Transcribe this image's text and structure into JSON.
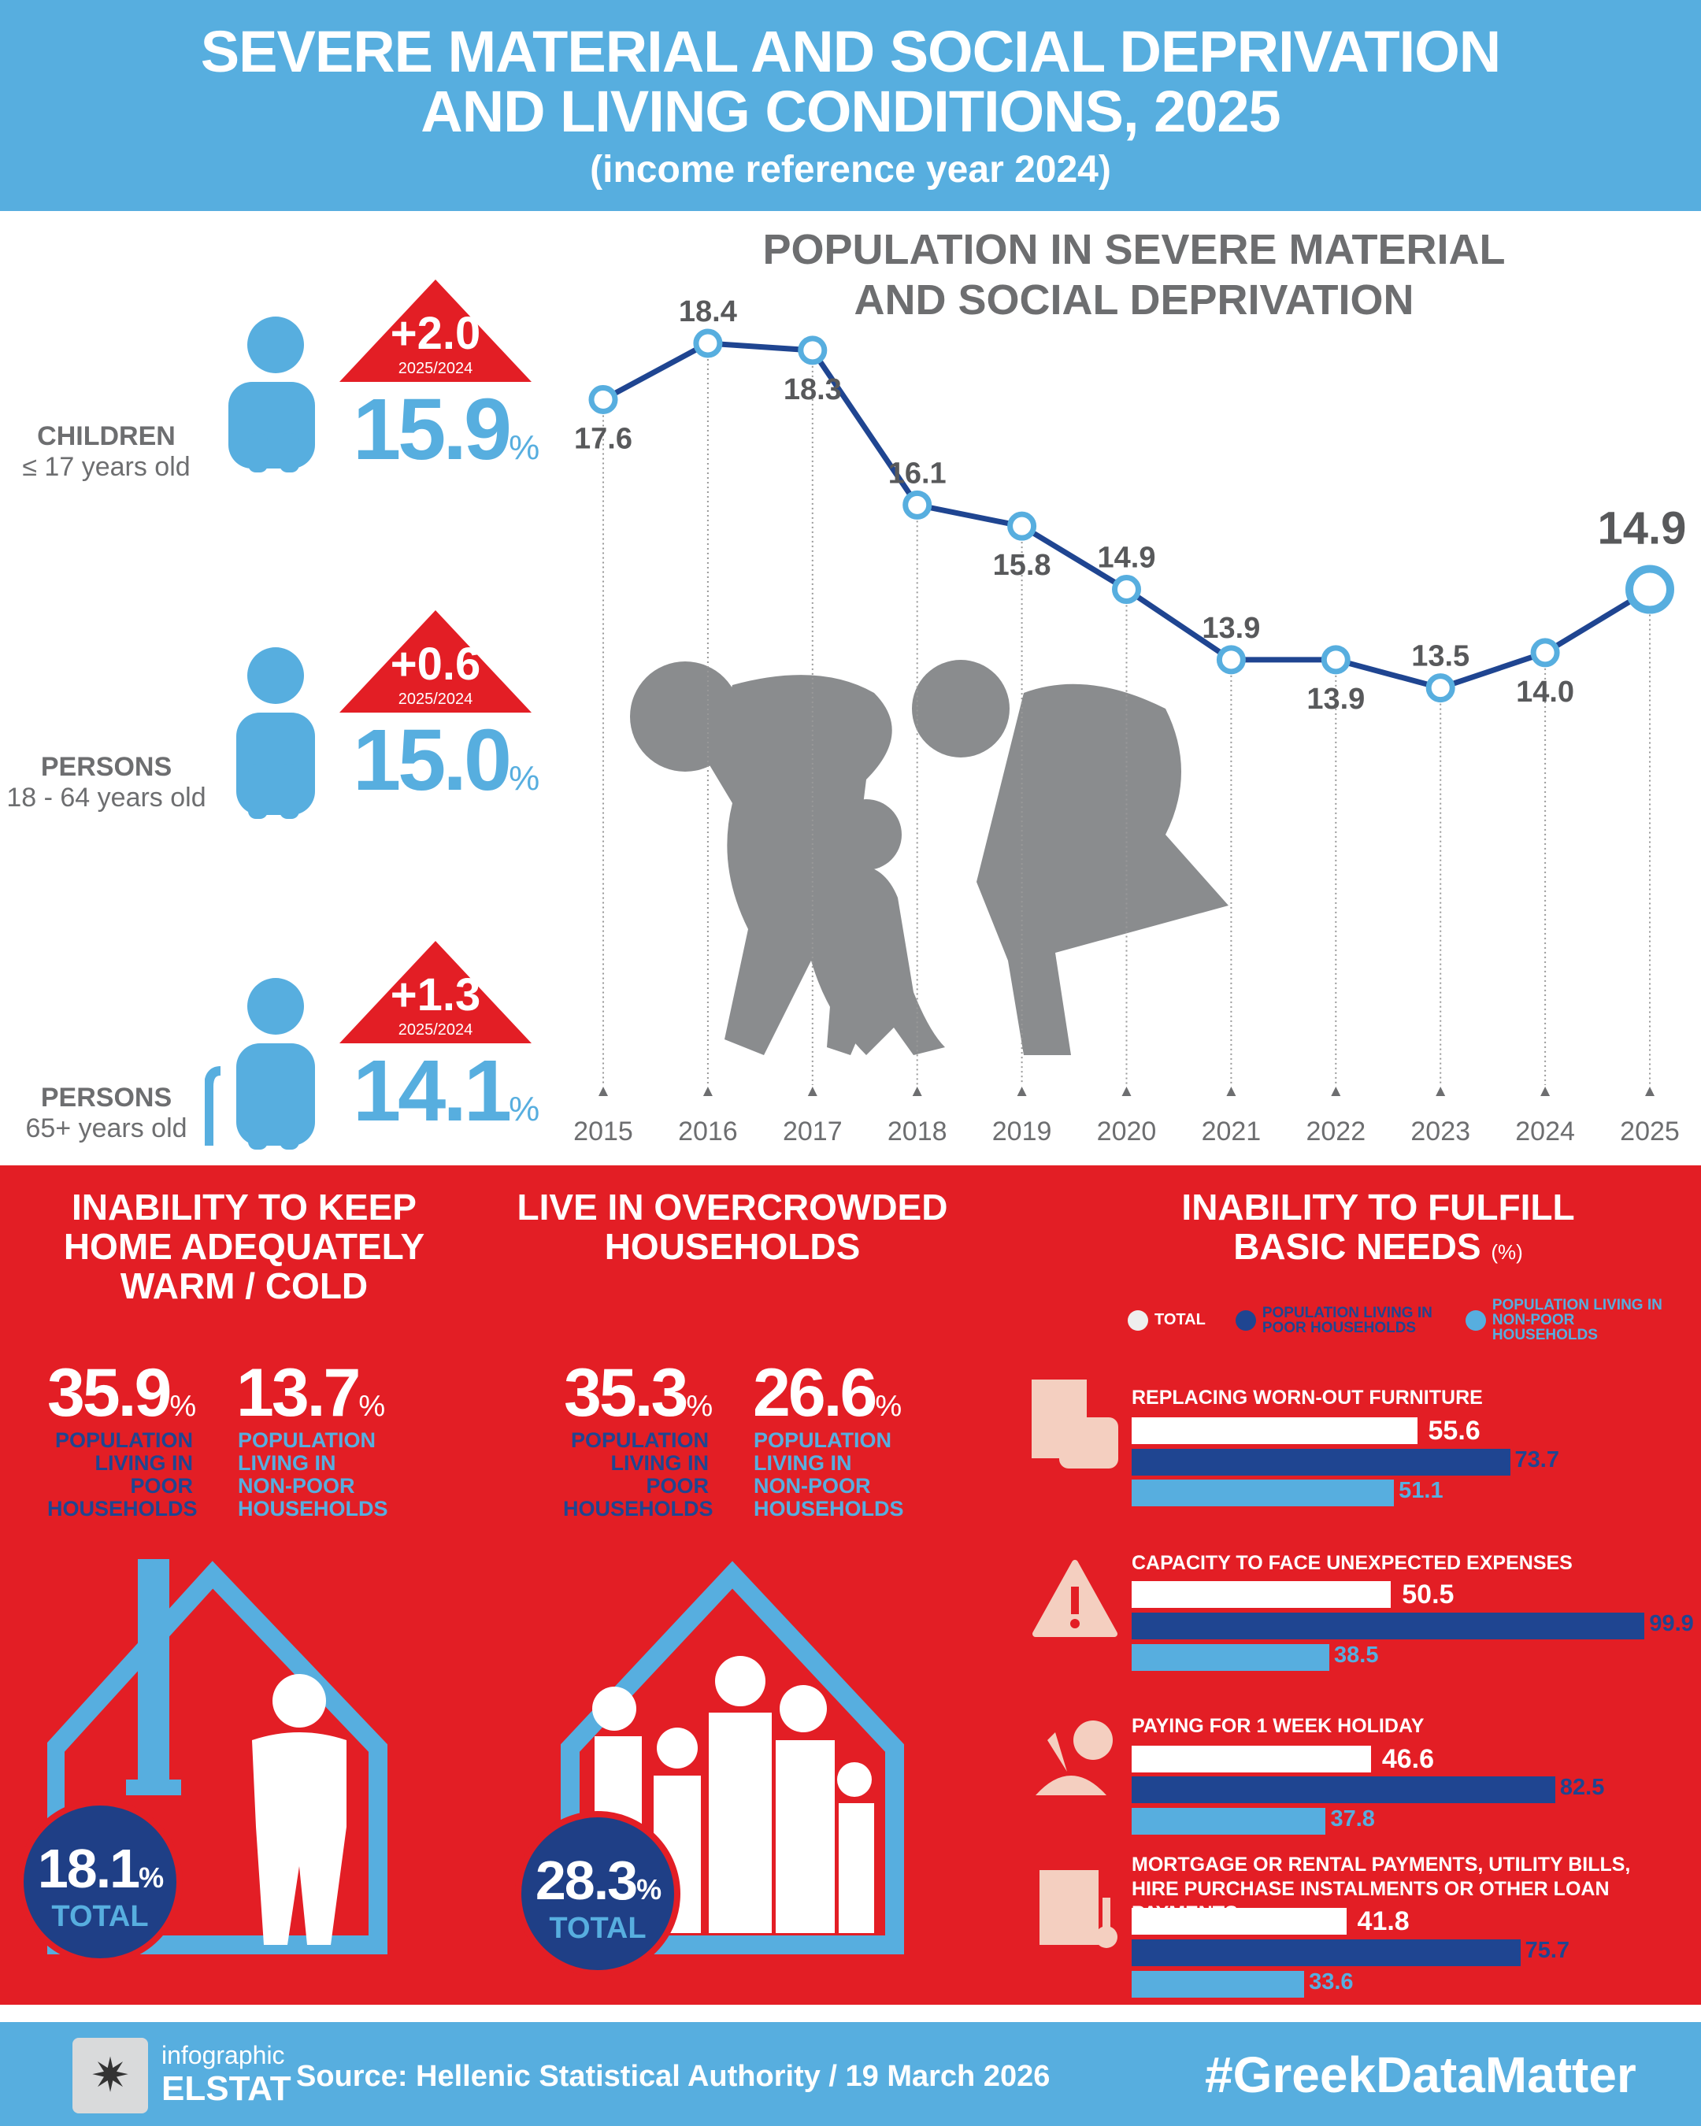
{
  "header": {
    "title_line1": "SEVERE MATERIAL AND SOCIAL DEPRIVATION",
    "title_line2": "AND LIVING CONDITIONS, 2025",
    "subtitle": "(income reference year 2024)"
  },
  "groups": [
    {
      "label": "CHILDREN",
      "age": "≤ 17 years old",
      "change": "+2.0",
      "period": "2025/2024",
      "value": "15.9",
      "unit": "%"
    },
    {
      "label": "PERSONS",
      "age": "18 - 64 years old",
      "change": "+0.6",
      "period": "2025/2024",
      "value": "15.0",
      "unit": "%"
    },
    {
      "label": "PERSONS",
      "age": "65+ years old",
      "change": "+1.3",
      "period": "2025/2024",
      "value": "14.1",
      "unit": "%"
    }
  ],
  "colors": {
    "blue": "#57aedf",
    "navy": "#1f4591",
    "red": "#e31e25",
    "gray": "#6d6e70"
  },
  "chart_data": {
    "type": "line",
    "title": "POPULATION IN SEVERE MATERIAL AND SOCIAL DEPRIVATION",
    "x": [
      "2015",
      "2016",
      "2017",
      "2018",
      "2019",
      "2020",
      "2021",
      "2022",
      "2023",
      "2024",
      "2025"
    ],
    "values": [
      17.6,
      18.4,
      18.3,
      16.1,
      15.8,
      14.9,
      13.9,
      13.9,
      13.5,
      14.0,
      14.9
    ],
    "labels": [
      "17.6",
      "18.4",
      "18.3",
      "16.1",
      "15.8",
      "14.9",
      "13.9",
      "13.9",
      "13.5",
      "14.0",
      "14.9"
    ],
    "ylabel": "%",
    "grid": false
  },
  "warm": {
    "title": "INABILITY TO KEEP HOME ADEQUATELY WARM / COLD",
    "poor": "35.9",
    "nonpoor": "13.7",
    "unit": "%",
    "poor_label": "POPULATION LIVING IN POOR HOUSEHOLDS",
    "nonpoor_label": "POPULATION LIVING IN NON-POOR HOUSEHOLDS",
    "total": "18.1",
    "total_label": "TOTAL"
  },
  "crowd": {
    "title": "LIVE IN OVERCROWDED HOUSEHOLDS",
    "poor": "35.3",
    "nonpoor": "26.6",
    "unit": "%",
    "poor_label": "POPULATION LIVING IN POOR HOUSEHOLDS",
    "nonpoor_label": "POPULATION LIVING IN NON-POOR HOUSEHOLDS",
    "total": "28.3",
    "total_label": "TOTAL"
  },
  "needs": {
    "title": "INABILITY TO FULFILL BASIC NEEDS",
    "unit": "(%)",
    "legend": [
      "TOTAL",
      "POPULATION LIVING IN POOR HOUSEHOLDS",
      "POPULATION LIVING IN NON-POOR HOUSEHOLDS"
    ],
    "chart_data": {
      "type": "bar",
      "series": [
        "Total",
        "Poor",
        "Non-poor"
      ],
      "items": [
        {
          "label": "REPLACING WORN-OUT FURNITURE",
          "values": [
            55.6,
            73.7,
            51.1
          ],
          "text": [
            "55.6",
            "73.7",
            "51.1"
          ]
        },
        {
          "label": "CAPACITY TO FACE UNEXPECTED EXPENSES",
          "values": [
            50.5,
            99.9,
            38.5
          ],
          "text": [
            "50.5",
            "99.9",
            "38.5"
          ]
        },
        {
          "label": "PAYING FOR 1 WEEK HOLIDAY",
          "values": [
            46.6,
            82.5,
            37.8
          ],
          "text": [
            "46.6",
            "82.5",
            "37.8"
          ]
        },
        {
          "label": "MORTGAGE OR RENTAL PAYMENTS, UTILITY BILLS, HIRE PURCHASE INSTALMENTS OR OTHER LOAN PAYMENTS",
          "values": [
            41.8,
            75.7,
            33.6
          ],
          "text": [
            "41.8",
            "75.7",
            "33.6"
          ]
        }
      ]
    }
  },
  "footer": {
    "logo_top": "infographic",
    "logo_bottom": "ELSTAT",
    "source": "Source: Hellenic Statistical Authority / 19 March 2026",
    "hashtag": "#GreekDataMatter"
  }
}
